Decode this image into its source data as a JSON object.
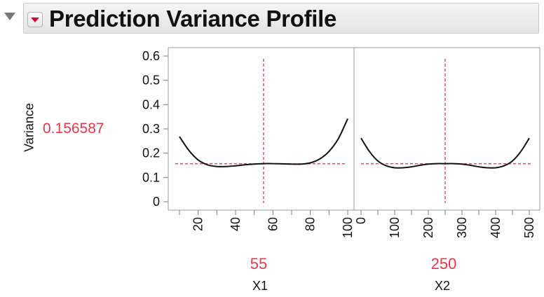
{
  "header": {
    "title": "Prediction Variance Profile"
  },
  "response": {
    "label": "Variance",
    "current_value": "0.156587"
  },
  "factors": [
    {
      "name": "X1",
      "current_value": "55"
    },
    {
      "name": "X2",
      "current_value": "250"
    }
  ],
  "colors": {
    "current_value": "#e8374f",
    "reference_line": "#d2384f",
    "curve": "#111111",
    "header_bg": "#e9e9e9"
  },
  "icons": {
    "collapse": "disclosure-triangle-down-icon",
    "menu": "red-triangle-menu-icon"
  },
  "chart_data": [
    {
      "type": "line",
      "factor": "X1",
      "ylim": [
        0,
        0.6
      ],
      "yticks": [
        0,
        0.1,
        0.2,
        0.3,
        0.4,
        0.5,
        0.6
      ],
      "xlim": [
        10,
        100
      ],
      "xticks": [
        20,
        40,
        60,
        80,
        100
      ],
      "current_x": 55,
      "current_y": 0.156587,
      "series": [
        {
          "x": [
            10,
            15,
            20,
            25,
            30,
            35,
            40,
            45,
            50,
            55,
            60,
            65,
            70,
            75,
            80,
            85,
            90,
            95,
            100
          ],
          "values": [
            0.268,
            0.212,
            0.172,
            0.152,
            0.145,
            0.145,
            0.148,
            0.152,
            0.155,
            0.157,
            0.157,
            0.156,
            0.155,
            0.155,
            0.16,
            0.176,
            0.207,
            0.26,
            0.342
          ]
        }
      ]
    },
    {
      "type": "line",
      "factor": "X2",
      "ylim": [
        0,
        0.6
      ],
      "xlim": [
        0,
        500
      ],
      "xticks": [
        0,
        100,
        200,
        300,
        400,
        500
      ],
      "current_x": 250,
      "current_y": 0.156587,
      "series": [
        {
          "x": [
            0,
            25,
            50,
            75,
            100,
            125,
            150,
            175,
            200,
            225,
            250,
            275,
            300,
            325,
            350,
            375,
            400,
            425,
            450,
            475,
            500
          ],
          "values": [
            0.262,
            0.207,
            0.168,
            0.148,
            0.14,
            0.14,
            0.144,
            0.15,
            0.155,
            0.157,
            0.157,
            0.157,
            0.155,
            0.15,
            0.144,
            0.14,
            0.14,
            0.148,
            0.168,
            0.207,
            0.262
          ]
        }
      ]
    }
  ]
}
